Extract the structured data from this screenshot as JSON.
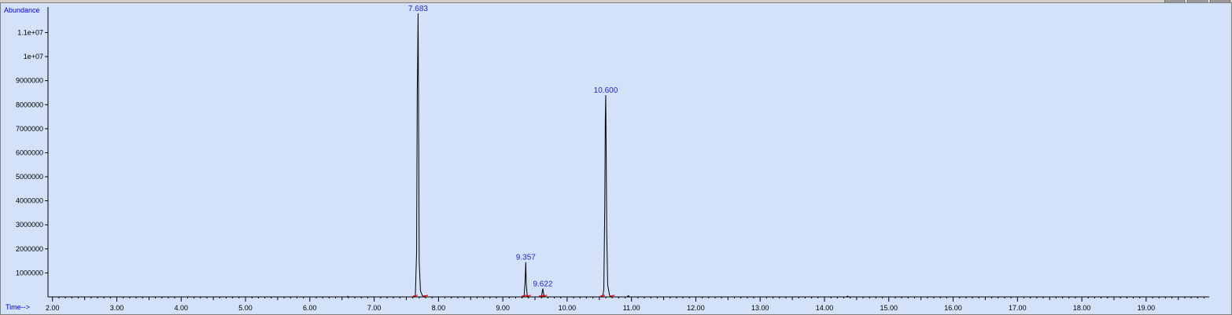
{
  "chart_data": {
    "type": "line",
    "title": "",
    "ylabel": "Abundance",
    "xlabel": "Time-->",
    "xlim": [
      1.93,
      19.98
    ],
    "ylim": [
      0,
      11800000
    ],
    "grid": false,
    "legend": "none",
    "colors": {
      "background": "#d3e2f8",
      "trace": "#000000",
      "baseline": "#ff0000",
      "label": "#2525c8"
    },
    "x_ticks": [
      "2.00",
      "3.00",
      "4.00",
      "5.00",
      "6.00",
      "7.00",
      "8.00",
      "9.00",
      "10.00",
      "11.00",
      "12.00",
      "13.00",
      "14.00",
      "15.00",
      "16.00",
      "17.00",
      "18.00",
      "19.00"
    ],
    "x_tick_values": [
      2,
      3,
      4,
      5,
      6,
      7,
      8,
      9,
      10,
      11,
      12,
      13,
      14,
      15,
      16,
      17,
      18,
      19
    ],
    "y_ticks": [
      "1000000",
      "2000000",
      "3000000",
      "4000000",
      "5000000",
      "6000000",
      "7000000",
      "8000000",
      "9000000",
      "1e+07",
      "1.1e+07"
    ],
    "y_tick_values": [
      1000000,
      2000000,
      3000000,
      4000000,
      5000000,
      6000000,
      7000000,
      8000000,
      9000000,
      10000000,
      11000000
    ],
    "series": [
      {
        "x": [
          1.95,
          6.58,
          6.59,
          6.6,
          7.64,
          7.66,
          7.67,
          7.675,
          7.683,
          7.688,
          7.695,
          7.7,
          7.72,
          7.75,
          7.8,
          9.33,
          9.345,
          9.357,
          9.365,
          9.38,
          9.4,
          9.6,
          9.612,
          9.622,
          9.632,
          9.65,
          10.55,
          10.57,
          10.585,
          10.593,
          10.6,
          10.607,
          10.615,
          10.63,
          10.66,
          10.7,
          10.93,
          10.95,
          10.97,
          14.34,
          14.36,
          14.38,
          19.98
        ],
        "y": [
          0,
          0,
          25000,
          0,
          0,
          1900000,
          8600000,
          9500000,
          11800000,
          9000000,
          5000000,
          1500000,
          250000,
          50000,
          0,
          0,
          600000,
          1450000,
          500000,
          50000,
          0,
          0,
          200000,
          350000,
          150000,
          0,
          0,
          300000,
          3800000,
          7400000,
          8400000,
          6000000,
          2800000,
          500000,
          60000,
          0,
          0,
          55000,
          0,
          0,
          35000,
          0,
          0
        ]
      }
    ],
    "peaks": [
      {
        "label": "7.683",
        "x": 7.683,
        "y": 11800000
      },
      {
        "label": "9.357",
        "x": 9.357,
        "y": 1450000
      },
      {
        "label": "9.622",
        "x": 9.622,
        "y": 350000
      },
      {
        "label": "10.600",
        "x": 10.6,
        "y": 8400000
      }
    ],
    "baseline_marks": [
      7.64,
      7.8,
      9.33,
      9.4,
      9.6,
      9.65,
      10.55,
      10.7
    ]
  }
}
